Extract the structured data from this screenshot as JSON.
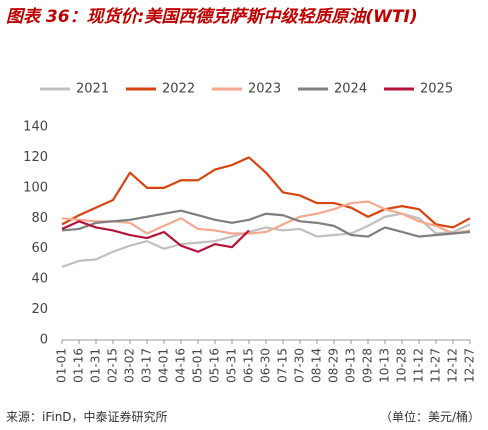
{
  "chart_data": {
    "type": "line",
    "title": "图表 36：现货价:美国西德克萨斯中级轻质原油(WTI)",
    "source": "来源：iFinD，中泰证券研究所",
    "unit": "（单位：美元/桶）",
    "categories": [
      "01-01",
      "01-16",
      "01-31",
      "02-15",
      "03-02",
      "03-17",
      "04-01",
      "04-16",
      "05-01",
      "05-16",
      "05-31",
      "06-15",
      "06-30",
      "07-15",
      "07-30",
      "08-14",
      "08-29",
      "09-13",
      "09-28",
      "10-13",
      "10-28",
      "11-12",
      "11-27",
      "12-12",
      "12-27"
    ],
    "series": [
      {
        "name": "2021",
        "color": "#c0c0c0",
        "values": [
          48,
          52,
          53,
          58,
          62,
          65,
          60,
          63,
          64,
          65,
          68,
          71,
          74,
          72,
          73,
          68,
          69,
          70,
          75,
          81,
          83,
          80,
          70,
          71,
          76
        ]
      },
      {
        "name": "2022",
        "color": "#d9440f",
        "values": [
          76,
          82,
          87,
          92,
          110,
          100,
          100,
          105,
          105,
          112,
          115,
          120,
          110,
          97,
          95,
          90,
          90,
          87,
          81,
          86,
          88,
          86,
          76,
          74,
          80
        ]
      },
      {
        "name": "2023",
        "color": "#f4a98e",
        "values": [
          80,
          79,
          78,
          78,
          77,
          70,
          75,
          80,
          73,
          72,
          70,
          70,
          71,
          76,
          81,
          83,
          86,
          90,
          91,
          86,
          83,
          78,
          75,
          70,
          72
        ]
      },
      {
        "name": "2024",
        "color": "#7f7f7f",
        "values": [
          72,
          73,
          77,
          78,
          79,
          81,
          83,
          85,
          82,
          79,
          77,
          79,
          83,
          82,
          78,
          77,
          75,
          69,
          68,
          74,
          71,
          68,
          69,
          70,
          71
        ]
      },
      {
        "name": "2025",
        "color": "#b5153a",
        "values": [
          73,
          78,
          74,
          72,
          69,
          67,
          71,
          62,
          58,
          63,
          61,
          72,
          null,
          null,
          null,
          null,
          null,
          null,
          null,
          null,
          null,
          null,
          null,
          null,
          null
        ]
      }
    ],
    "ylim": [
      0,
      140
    ],
    "yticks": [
      0,
      20,
      40,
      60,
      80,
      100,
      120,
      140
    ]
  }
}
